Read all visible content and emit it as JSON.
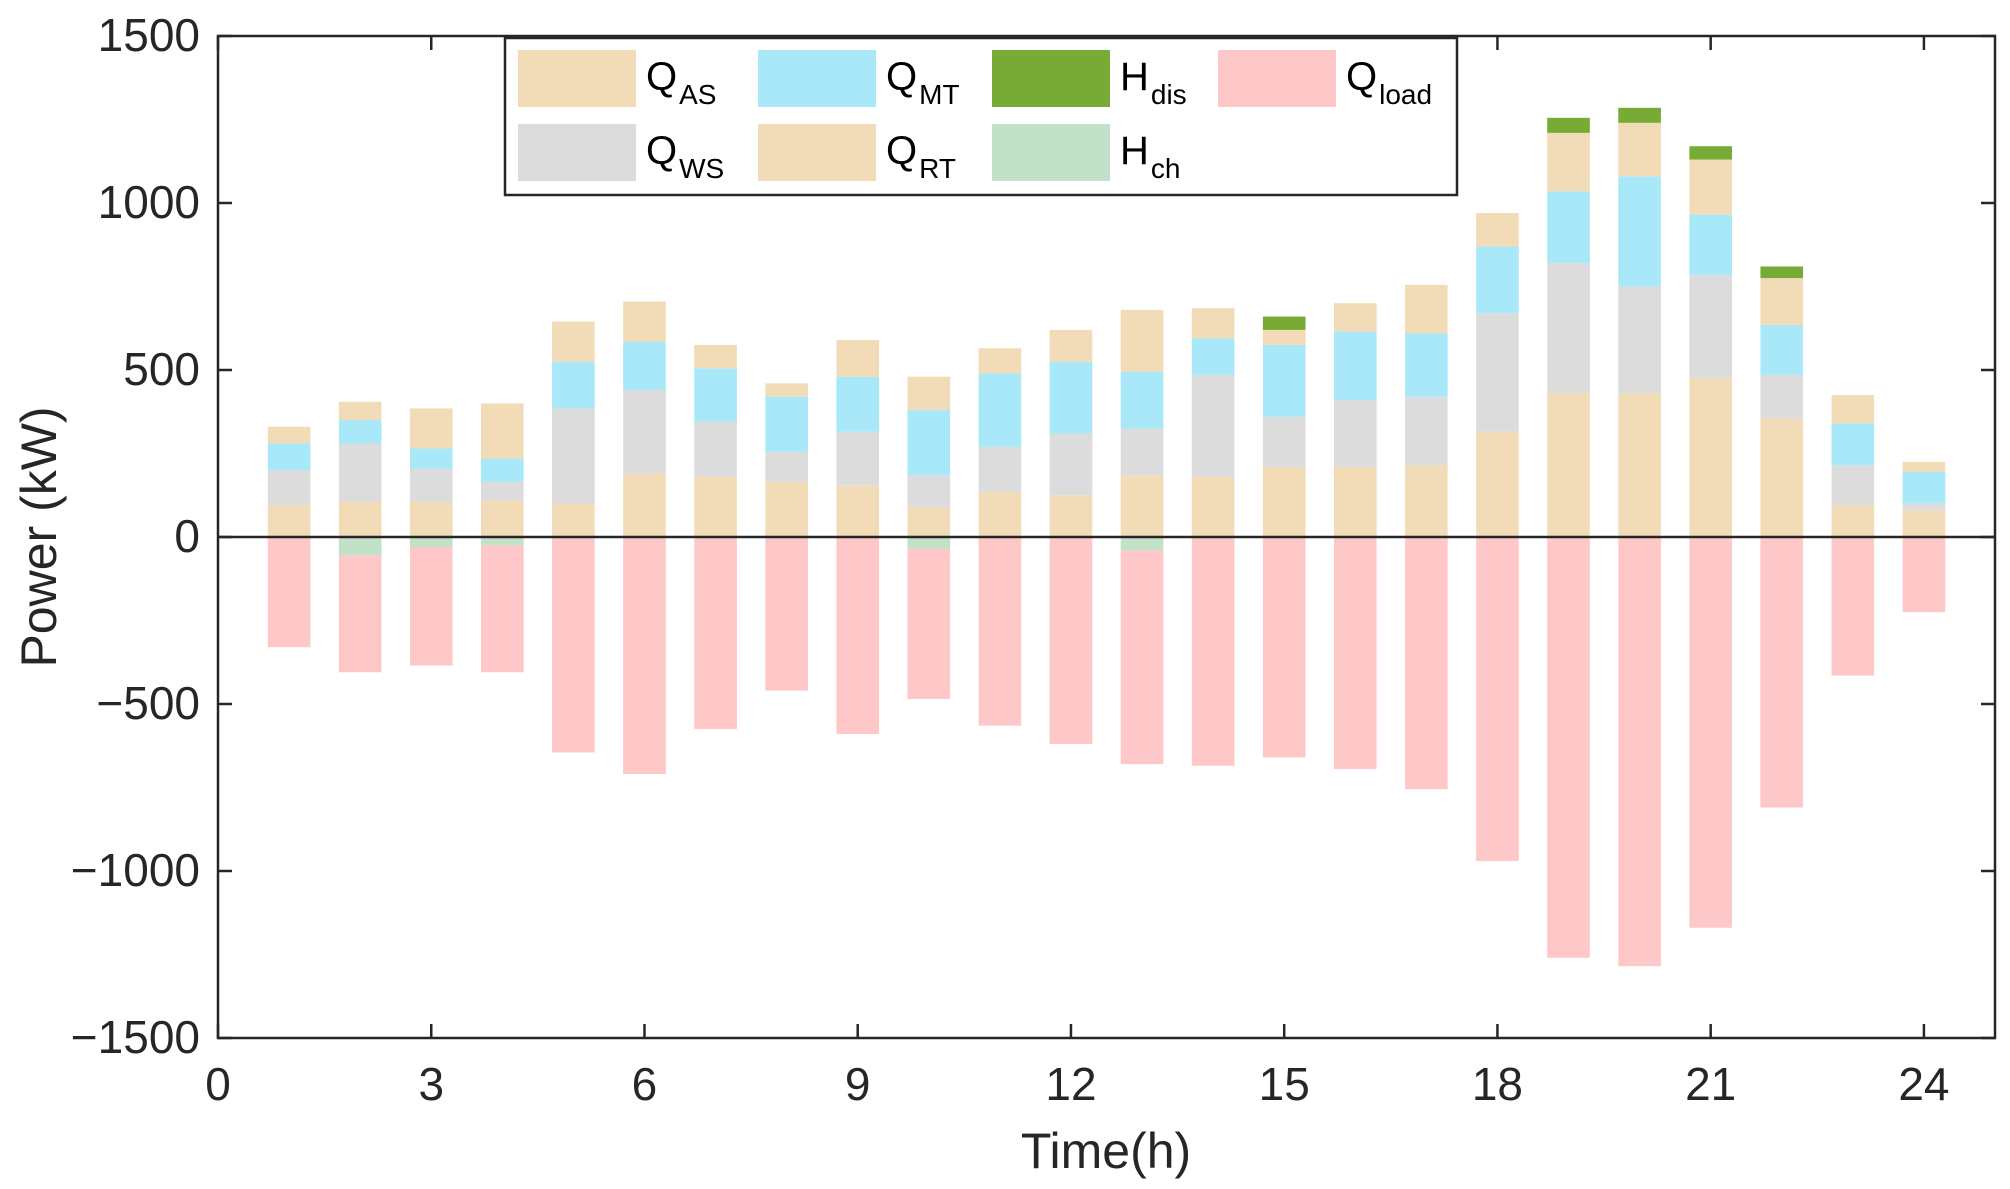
{
  "chart_data": {
    "type": "bar",
    "stacked": true,
    "xlabel": "Time(h)",
    "ylabel": "Power (kW)",
    "xlim": [
      0,
      25
    ],
    "ylim": [
      -1500,
      1500
    ],
    "xticks": [
      0,
      3,
      6,
      9,
      12,
      15,
      18,
      21,
      24
    ],
    "yticks": [
      -1500,
      -1000,
      -500,
      0,
      500,
      1000,
      1500
    ],
    "ytick_labels": [
      "−1500",
      "−1000",
      "−500",
      "0",
      "500",
      "1000",
      "1500"
    ],
    "legend_position": "top-left",
    "hours": [
      1,
      2,
      3,
      4,
      5,
      6,
      7,
      8,
      9,
      10,
      11,
      12,
      13,
      14,
      15,
      16,
      17,
      18,
      19,
      20,
      21,
      22,
      23,
      24
    ],
    "series": [
      {
        "key": "QAS",
        "name": "Q",
        "sub": "AS",
        "color": "#f2dcb8",
        "values": [
          95,
          105,
          105,
          110,
          100,
          190,
          180,
          165,
          155,
          90,
          135,
          125,
          185,
          180,
          210,
          210,
          215,
          315,
          430,
          430,
          475,
          355,
          95,
          80
        ]
      },
      {
        "key": "QWS",
        "name": "Q",
        "sub": "WS",
        "color": "#dcdcdc",
        "values": [
          105,
          175,
          100,
          55,
          285,
          250,
          165,
          90,
          160,
          95,
          135,
          185,
          140,
          305,
          150,
          200,
          205,
          355,
          390,
          320,
          310,
          130,
          120,
          20
        ]
      },
      {
        "key": "QMT",
        "name": "Q",
        "sub": "MT",
        "color": "#a9e8f8",
        "values": [
          80,
          70,
          60,
          70,
          140,
          145,
          160,
          165,
          165,
          195,
          220,
          215,
          170,
          110,
          215,
          205,
          190,
          200,
          215,
          330,
          180,
          150,
          125,
          95
        ]
      },
      {
        "key": "QRT",
        "name": "Q",
        "sub": "RT",
        "color": "#f2dcb8",
        "values": [
          50,
          55,
          120,
          165,
          120,
          120,
          70,
          40,
          110,
          100,
          75,
          95,
          185,
          90,
          45,
          85,
          145,
          100,
          175,
          160,
          165,
          140,
          85,
          30
        ]
      },
      {
        "key": "Hdis",
        "name": "H",
        "sub": "dis",
        "color": "#77ab35",
        "values": [
          0,
          0,
          0,
          0,
          0,
          0,
          0,
          0,
          0,
          0,
          0,
          0,
          0,
          0,
          40,
          0,
          0,
          0,
          45,
          45,
          40,
          35,
          0,
          0
        ]
      },
      {
        "key": "Hch",
        "name": "H",
        "sub": "ch",
        "color": "#c3e0c8",
        "values": [
          0,
          -55,
          -30,
          -25,
          0,
          0,
          0,
          0,
          0,
          -35,
          0,
          0,
          -40,
          0,
          0,
          0,
          0,
          0,
          0,
          0,
          0,
          0,
          0,
          0
        ]
      },
      {
        "key": "Qload",
        "name": "Q",
        "sub": "load",
        "color": "#ffc8c8",
        "values": [
          -330,
          -350,
          -355,
          -380,
          -645,
          -710,
          -575,
          -460,
          -590,
          -450,
          -565,
          -620,
          -640,
          -685,
          -660,
          -695,
          -755,
          -970,
          -1260,
          -1285,
          -1170,
          -810,
          -415,
          -225
        ]
      }
    ]
  }
}
